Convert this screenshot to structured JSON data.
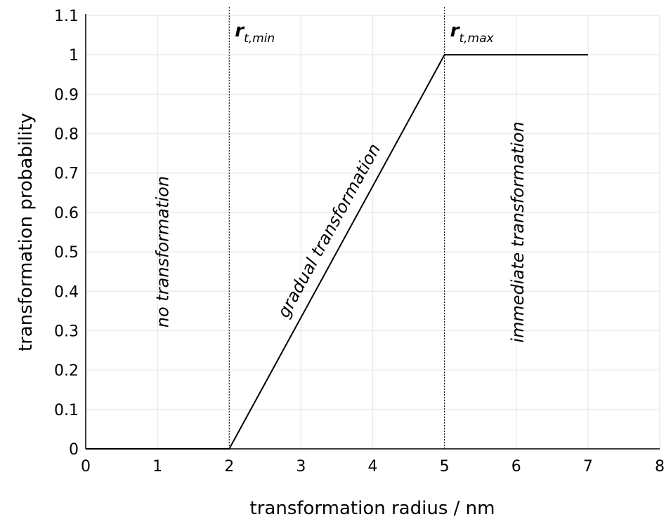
{
  "chart_data": {
    "type": "line",
    "title": "",
    "xlabel": "transformation radius / nm",
    "ylabel": "transformation probability",
    "xlim": [
      0,
      8
    ],
    "ylim": [
      0,
      1.1
    ],
    "xticks": [
      "0",
      "1",
      "2",
      "3",
      "4",
      "5",
      "6",
      "7",
      "8"
    ],
    "yticks": [
      "0",
      "0.1",
      "0.2",
      "0.3",
      "0.4",
      "0.5",
      "0.6",
      "0.7",
      "0.8",
      "0.9",
      "1",
      "1.1"
    ],
    "grid": true,
    "series": [
      {
        "name": "transformation probability",
        "color": "#000000",
        "x": [
          0,
          2,
          5,
          7
        ],
        "y": [
          0,
          0,
          1,
          1
        ]
      }
    ],
    "vlines": [
      {
        "x": 2,
        "label_main": "r",
        "label_sub": "t,min",
        "style": "dotted"
      },
      {
        "x": 5,
        "label_main": "r",
        "label_sub": "t,max",
        "style": "dotted"
      }
    ],
    "annotations": [
      {
        "text": "no transformation",
        "x": 1.15,
        "y": 0.5,
        "rotation": "vertical"
      },
      {
        "text": "gradual transformation",
        "x": 3.46,
        "y": 0.547,
        "rotation": "along-line"
      },
      {
        "text": "immediate transformation",
        "x": 6.1,
        "y": 0.55,
        "rotation": "vertical"
      }
    ]
  }
}
